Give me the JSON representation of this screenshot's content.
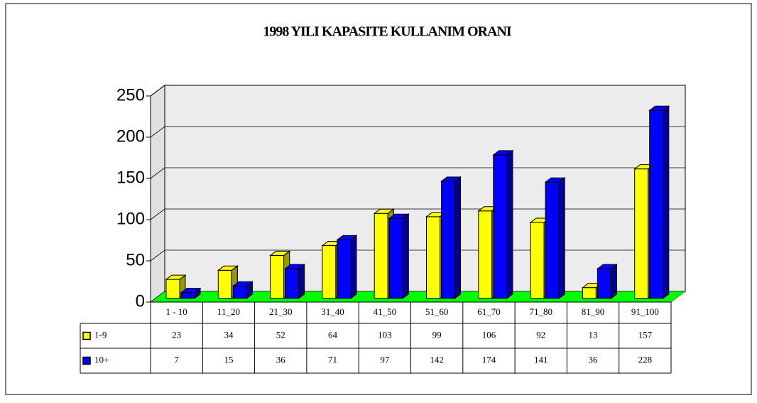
{
  "chart_data": {
    "type": "bar3d",
    "title": "1998 YILI KAPASITE KULLANIM ORANI",
    "categories": [
      "1 - 10",
      "11_20",
      "21_30",
      "31_40",
      "41_50",
      "51_60",
      "61_70",
      "71_80",
      "81_90",
      "91_100"
    ],
    "series": [
      {
        "name": "1-9",
        "color": "#ffff00",
        "values": [
          23,
          34,
          52,
          64,
          103,
          99,
          106,
          92,
          13,
          157
        ]
      },
      {
        "name": "10+",
        "color": "#0000ff",
        "values": [
          7,
          15,
          36,
          71,
          97,
          142,
          174,
          141,
          36,
          228
        ]
      }
    ],
    "ylim": [
      0,
      250
    ],
    "yticks": [
      0,
      50,
      100,
      150,
      200,
      250
    ],
    "grid": true,
    "floor_color": "#00ff00"
  }
}
